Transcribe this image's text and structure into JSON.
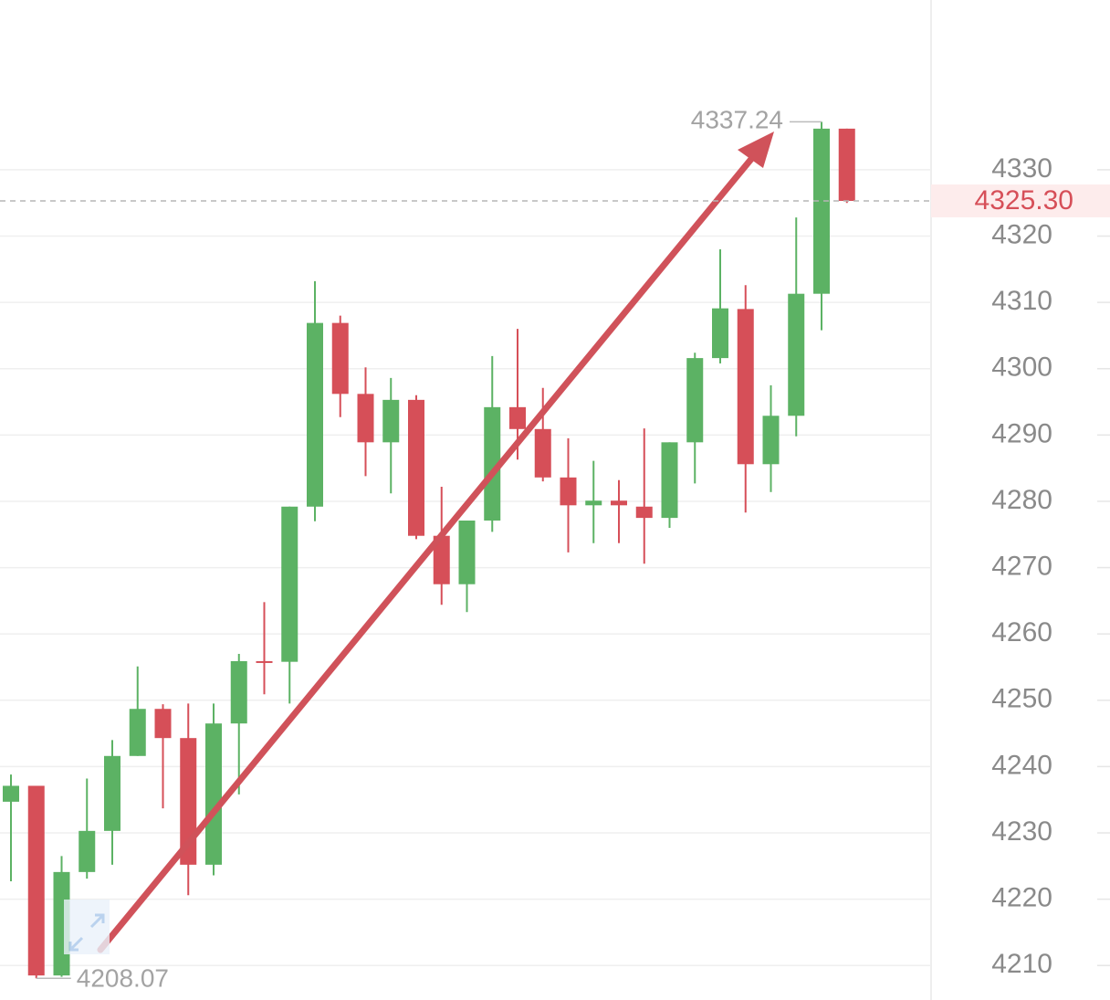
{
  "chart_data": {
    "type": "candlestick",
    "up_color": "#5cb264",
    "down_color": "#d64f58",
    "open": [
      4234.7,
      4237.1,
      4208.5,
      4224.1,
      4230.3,
      4241.6,
      4248.7,
      4244.3,
      4225.2,
      4246.5,
      4255.9,
      4255.8,
      4279.2,
      4306.9,
      4296.2,
      4288.9,
      4295.3,
      4274.8,
      4267.5,
      4277.1,
      4294.2,
      4290.9,
      4283.6,
      4279.4,
      4280.1,
      4279.2,
      4277.5,
      4288.9,
      4301.6,
      4309.0,
      4285.6,
      4292.9,
      4311.3,
      4336.2
    ],
    "high": [
      4238.8,
      4237.1,
      4226.5,
      4238.2,
      4244.0,
      4255.1,
      4249.4,
      4249.5,
      4249.5,
      4257.0,
      4264.8,
      4279.2,
      4313.2,
      4308.0,
      4300.2,
      4298.6,
      4296.0,
      4282.2,
      4277.1,
      4301.9,
      4306.0,
      4297.1,
      4289.5,
      4286.1,
      4283.2,
      4291.0,
      4288.9,
      4302.4,
      4318.0,
      4312.6,
      4297.5,
      4322.8,
      4337.24,
      4336.2
    ],
    "low": [
      4222.7,
      4208.07,
      4208.3,
      4223.1,
      4225.2,
      4241.6,
      4233.7,
      4220.6,
      4223.6,
      4235.8,
      4250.9,
      4249.5,
      4277.0,
      4292.7,
      4283.8,
      4281.2,
      4274.3,
      4264.4,
      4263.3,
      4275.4,
      4286.3,
      4283.0,
      4272.3,
      4273.7,
      4273.7,
      4270.6,
      4276.0,
      4282.7,
      4300.8,
      4278.3,
      4281.4,
      4289.8,
      4305.8,
      4325.0
    ],
    "close": [
      4237.1,
      4208.5,
      4224.1,
      4230.3,
      4241.6,
      4248.7,
      4244.3,
      4225.2,
      4246.5,
      4255.9,
      4255.8,
      4279.2,
      4306.9,
      4296.2,
      4288.9,
      4295.3,
      4274.8,
      4267.5,
      4277.1,
      4294.2,
      4290.9,
      4283.6,
      4279.4,
      4280.1,
      4279.4,
      4277.5,
      4288.9,
      4301.6,
      4309.1,
      4285.6,
      4292.9,
      4311.3,
      4336.2,
      4325.3
    ],
    "max": 4337.24,
    "min": 4208.07,
    "last_price": {
      "value": 4325.3,
      "label": "4325.30"
    },
    "ylim": [
      4204.8,
      4355.6
    ],
    "yticks": [
      4210,
      4220,
      4230,
      4240,
      4250,
      4260,
      4270,
      4280,
      4290,
      4300,
      4310,
      4320,
      4330
    ],
    "grid": true
  }
}
